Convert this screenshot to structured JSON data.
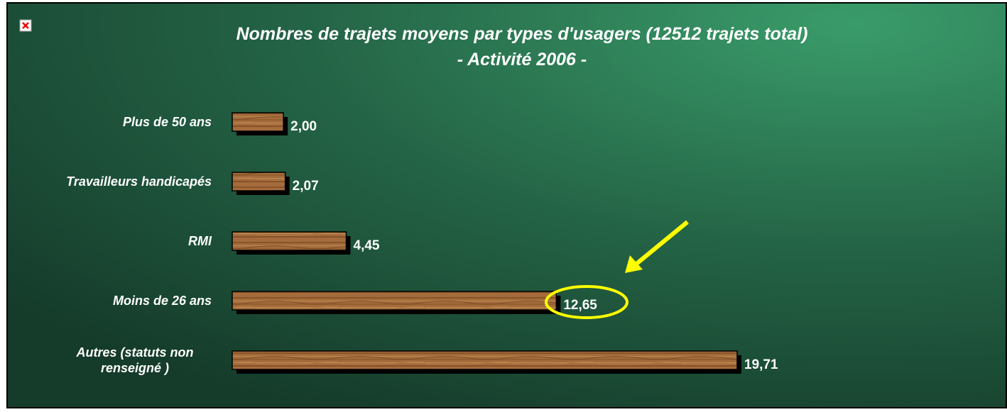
{
  "chart_data": {
    "type": "bar",
    "orientation": "horizontal",
    "title": [
      "Nombres de trajets moyens par types d'usagers (12512 trajets total)",
      "- Activité 2006 -"
    ],
    "categories": [
      "Plus de 50 ans",
      "Travailleurs handicapés",
      "RMI",
      "Moins de 26 ans",
      "Autres (statuts non\nrenseigné )"
    ],
    "values": [
      2.0,
      2.07,
      4.45,
      12.65,
      19.71
    ],
    "value_labels": [
      "2,00",
      "2,07",
      "4,45",
      "12,65",
      "19,71"
    ],
    "color": "#a46c3c"
  }
}
